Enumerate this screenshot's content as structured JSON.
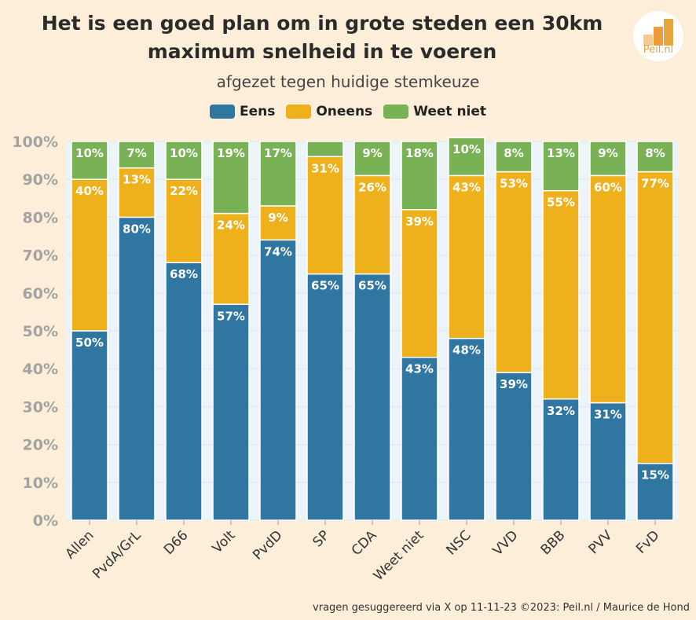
{
  "chart_data": {
    "type": "bar",
    "stacked": true,
    "title_lines": [
      "Het is een goed plan om in grote steden een 30km",
      "maximum snelheid in te voeren"
    ],
    "subtitle": "afgezet tegen huidige stemkeuze",
    "categories": [
      "Allen",
      "PvdA/GrL",
      "D66",
      "Volt",
      "PvdD",
      "SP",
      "CDA",
      "Weet niet",
      "NSC",
      "VVD",
      "BBB",
      "PVV",
      "FvD"
    ],
    "series": [
      {
        "name": "Eens",
        "color": "#2f76a1",
        "values": [
          50,
          80,
          68,
          57,
          74,
          65,
          65,
          43,
          48,
          39,
          32,
          31,
          15
        ],
        "labels": [
          "50%",
          "80%",
          "68%",
          "57%",
          "74%",
          "65%",
          "65%",
          "43%",
          "48%",
          "39%",
          "32%",
          "31%",
          "15%"
        ]
      },
      {
        "name": "Oneens",
        "color": "#eeb11c",
        "values": [
          40,
          13,
          22,
          24,
          9,
          31,
          26,
          39,
          43,
          53,
          55,
          60,
          77
        ],
        "labels": [
          "40%",
          "13%",
          "22%",
          "24%",
          "9%",
          "31%",
          "26%",
          "39%",
          "43%",
          "53%",
          "55%",
          "60%",
          "77%"
        ]
      },
      {
        "name": "Weet niet",
        "color": "#79b255",
        "values": [
          10,
          7,
          10,
          19,
          17,
          4,
          9,
          18,
          10,
          8,
          13,
          9,
          8
        ],
        "labels": [
          "10%",
          "7%",
          "10%",
          "19%",
          "17%",
          "",
          "9%",
          "18%",
          "10%",
          "8%",
          "13%",
          "9%",
          "8%"
        ]
      }
    ],
    "ylim": [
      0,
      100
    ],
    "yticks": [
      0,
      10,
      20,
      30,
      40,
      50,
      60,
      70,
      80,
      90,
      100
    ],
    "ytick_labels": [
      "0%",
      "10%",
      "20%",
      "30%",
      "40%",
      "50%",
      "60%",
      "70%",
      "80%",
      "90%",
      "100%"
    ],
    "legend_position": "top",
    "grid": true
  },
  "logo": {
    "text": "Peil.nl",
    "bar_colors": [
      "#f7c98d",
      "#ec9d3a",
      "#e8a43d"
    ]
  },
  "footer": "vragen gesuggereerd via X op 11-11-23 ©2023: Peil.nl / Maurice de Hond"
}
